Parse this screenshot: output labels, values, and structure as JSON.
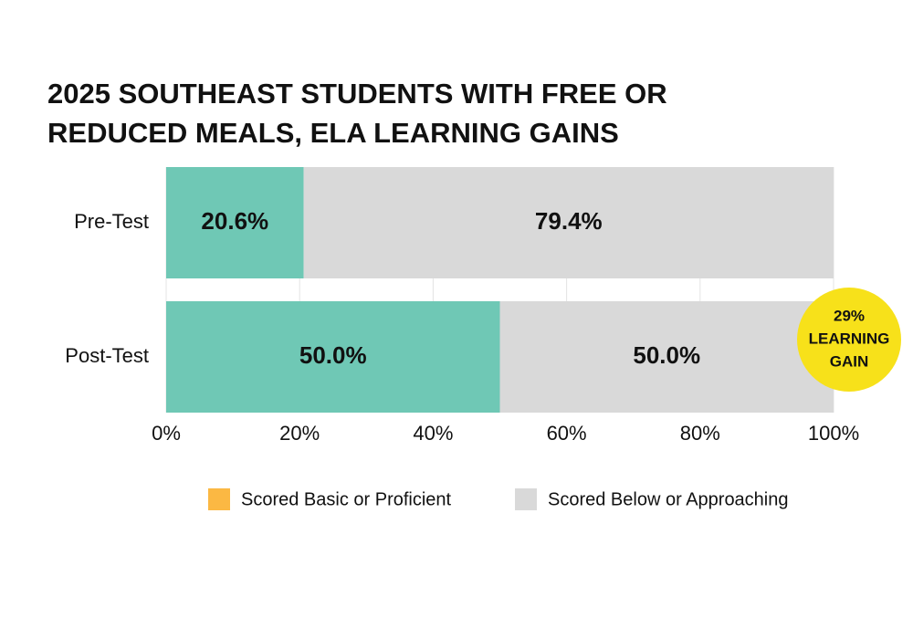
{
  "chart_data": {
    "type": "stacked_barh",
    "title": [
      "2025 SOUTHEAST STUDENTS WITH FREE OR",
      "REDUCED MEALS, ELA LEARNING GAINS"
    ],
    "categories": [
      "Pre-Test",
      "Post-Test"
    ],
    "series": [
      {
        "name": "Scored Basic or Proficient",
        "color": "#6fc8b5",
        "legend_color": "#fbb843",
        "values": [
          20.6,
          50.0
        ],
        "value_labels": [
          "20.6%",
          "50.0%"
        ]
      },
      {
        "name": "Scored Below or Approaching",
        "color": "#d9d9d9",
        "legend_color": "#d9d9d9",
        "values": [
          79.4,
          50.0
        ],
        "value_labels": [
          "79.4%",
          "50.0%"
        ]
      }
    ],
    "xlim": [
      0,
      100
    ],
    "xticks": [
      {
        "value": 0,
        "label": "0%"
      },
      {
        "value": 20,
        "label": "20%"
      },
      {
        "value": 40,
        "label": "40%"
      },
      {
        "value": 60,
        "label": "60%"
      },
      {
        "value": 80,
        "label": "80%"
      },
      {
        "value": 100,
        "label": "100%"
      }
    ],
    "grid": true,
    "annotation": {
      "lines": [
        "29%",
        "LEARNING",
        "GAIN"
      ],
      "color": "#f7e11a"
    }
  }
}
